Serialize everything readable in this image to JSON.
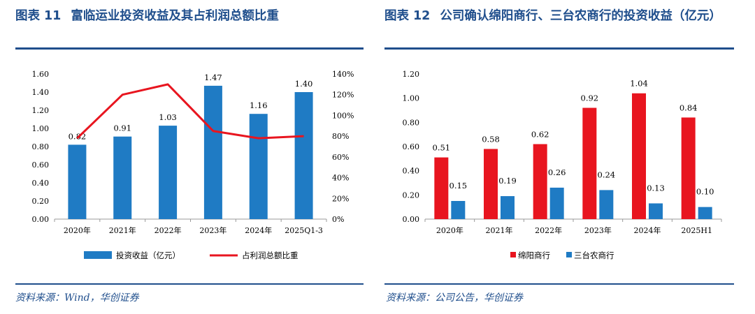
{
  "left": {
    "figure_label": "图表",
    "figure_number": "11",
    "title": "富临运业投资收益及其占利润总额比重",
    "source": "资料来源：Wind，华创证券"
  },
  "right": {
    "figure_label": "图表",
    "figure_number": "12",
    "title": "公司确认绵阳商行、三台农商行的投资收益（亿元）",
    "source": "资料来源：公司公告，华创证券"
  },
  "chart_data": [
    {
      "type": "bar",
      "title": "富临运业投资收益及其占利润总额比重",
      "categories": [
        "2020年",
        "2021年",
        "2022年",
        "2023年",
        "2024年",
        "2025Q1-3"
      ],
      "series": [
        {
          "name": "投资收益（亿元）",
          "type": "bar",
          "axis": "left",
          "color": "#1f7bc4",
          "values": [
            0.82,
            0.91,
            1.03,
            1.47,
            1.16,
            1.4
          ],
          "labels": [
            "0.82",
            "0.91",
            "1.03",
            "1.47",
            "1.16",
            "1.40"
          ]
        },
        {
          "name": "占利润总额比重",
          "type": "line",
          "axis": "right",
          "color": "#e8151f",
          "values": [
            78,
            120,
            130,
            85,
            78,
            80
          ]
        }
      ],
      "ylim": [
        0,
        1.6
      ],
      "yticks": [
        "0.00",
        "0.20",
        "0.40",
        "0.60",
        "0.80",
        "1.00",
        "1.20",
        "1.40",
        "1.60"
      ],
      "y2lim": [
        0,
        140
      ],
      "y2ticks": [
        "0%",
        "20%",
        "40%",
        "60%",
        "80%",
        "100%",
        "120%",
        "140%"
      ],
      "legend_position": "bottom"
    },
    {
      "type": "bar",
      "title": "公司确认绵阳商行、三台农商行的投资收益（亿元）",
      "categories": [
        "2020年",
        "2021年",
        "2022年",
        "2023年",
        "2024年",
        "2025H1"
      ],
      "series": [
        {
          "name": "绵阳商行",
          "color": "#e8151f",
          "values": [
            0.51,
            0.58,
            0.62,
            0.92,
            1.04,
            0.84
          ],
          "labels": [
            "0.51",
            "0.58",
            "0.62",
            "0.92",
            "1.04",
            "0.84"
          ]
        },
        {
          "name": "三台农商行",
          "color": "#1f7bc4",
          "values": [
            0.15,
            0.19,
            0.26,
            0.24,
            0.13,
            0.1
          ],
          "labels": [
            "0.15",
            "0.19",
            "0.26",
            "0.24",
            "0.13",
            "0.10"
          ]
        }
      ],
      "ylim": [
        0,
        1.2
      ],
      "yticks": [
        "0.00",
        "0.20",
        "0.40",
        "0.60",
        "0.80",
        "1.00",
        "1.20"
      ],
      "legend_position": "bottom"
    }
  ]
}
